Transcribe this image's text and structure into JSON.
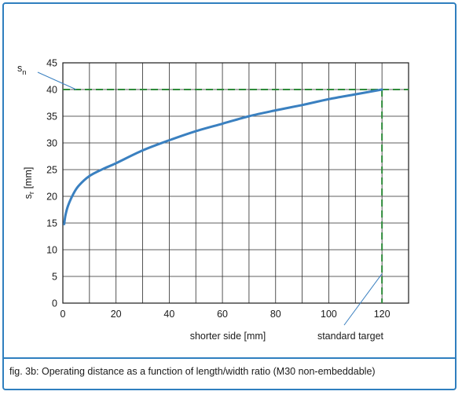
{
  "caption": "fig. 3b: Operating distance as a function of length/width ratio  (M30 non-embeddable)",
  "colors": {
    "frame": "#2f7fbf",
    "curve": "#3a80c0",
    "guide": "#2e8b3a",
    "annotation": "#3a80c0"
  },
  "chart_data": {
    "type": "line",
    "title": "",
    "xlabel": "shorter side [mm]",
    "ylabel_main": "s",
    "ylabel_sub": "r",
    "ylabel_unit": " [mm]",
    "xlim": [
      0,
      130
    ],
    "ylim": [
      0,
      45
    ],
    "xticks": [
      0,
      20,
      40,
      60,
      80,
      100,
      120
    ],
    "yticks": [
      0,
      5,
      10,
      15,
      20,
      25,
      30,
      35,
      40,
      45
    ],
    "grid": true,
    "series": [
      {
        "x": [
          0.5,
          1,
          2,
          4,
          6,
          10,
          15,
          20,
          30,
          40,
          50,
          60,
          70,
          80,
          90,
          100,
          110,
          120
        ],
        "values": [
          14.8,
          16.5,
          18.3,
          20.5,
          22.0,
          23.8,
          25.1,
          26.2,
          28.6,
          30.5,
          32.2,
          33.6,
          35.0,
          36.1,
          37.1,
          38.2,
          39.1,
          40.0
        ]
      }
    ],
    "reference_lines": [
      {
        "axis": "y",
        "value": 40,
        "label_main": "s",
        "label_sub": "n"
      },
      {
        "axis": "x",
        "value": 120,
        "label": "standard  target"
      }
    ]
  }
}
